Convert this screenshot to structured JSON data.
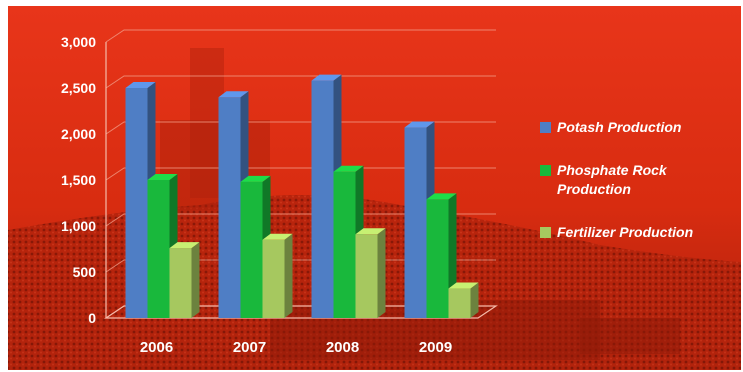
{
  "chart_data": {
    "type": "bar",
    "categories": [
      "2006",
      "2007",
      "2008",
      "2009"
    ],
    "series": [
      {
        "name": "Potash Production",
        "values": [
          2500,
          2400,
          2580,
          2070
        ],
        "color": "#4f7ec5"
      },
      {
        "name": "Phosphate Rock Production",
        "values": [
          1500,
          1480,
          1590,
          1290
        ],
        "color": "#19b83c"
      },
      {
        "name": "Fertilizer Production",
        "values": [
          760,
          850,
          910,
          320
        ],
        "color": "#a6c85f"
      }
    ],
    "yticks": [
      "0",
      "500",
      "1,000",
      "1,500",
      "2,000",
      "2,500",
      "3,000"
    ],
    "ylim": [
      0,
      3000
    ],
    "grid": true,
    "legend_position": "right",
    "style": "3d-clustered-column",
    "background_color": "#e03112"
  }
}
